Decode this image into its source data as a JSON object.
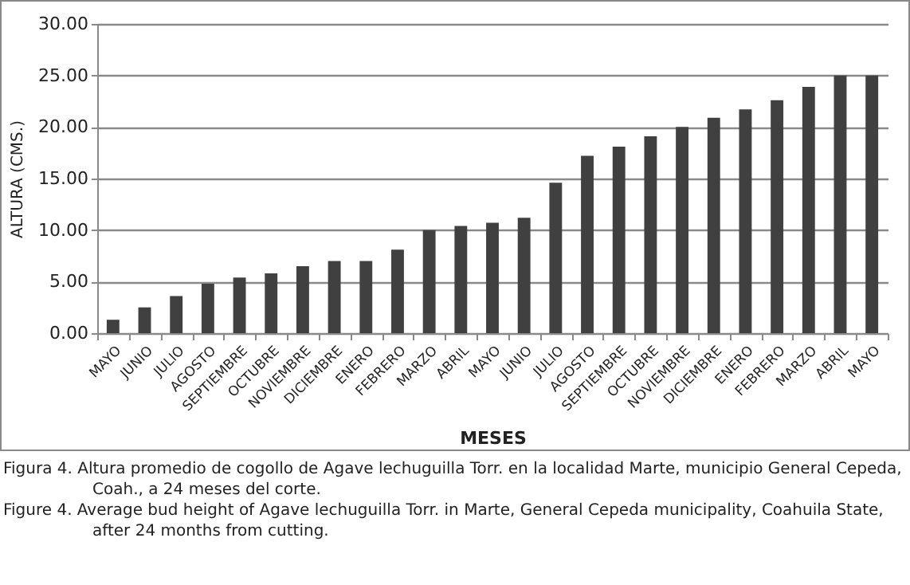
{
  "chart_data": {
    "type": "bar",
    "xlabel": "MESES",
    "ylabel": "ALTURA (CMS.)",
    "categories": [
      "MAYO",
      "JUNIO",
      "JULIO",
      "AGOSTO",
      "SEPTIEMBRE",
      "OCTUBRE",
      "NOVIEMBRE",
      "DICIEMBRE",
      "ENERO",
      "FEBRERO",
      "MARZO",
      "ABRIL",
      "MAYO",
      "JUNIO",
      "JULIO",
      "AGOSTO",
      "SEPTIEMBRE",
      "OCTUBRE",
      "NOVIEMBRE",
      "DICIEMBRE",
      "ENERO",
      "FEBRERO",
      "MARZO",
      "ABRIL",
      "MAYO"
    ],
    "values": [
      1.3,
      2.5,
      3.6,
      4.8,
      5.4,
      5.8,
      6.5,
      7.0,
      7.0,
      8.1,
      10.0,
      10.4,
      10.7,
      11.2,
      14.6,
      17.2,
      18.1,
      19.1,
      20.0,
      20.9,
      21.7,
      22.6,
      23.9,
      25.0,
      25.0
    ],
    "color": "#404040",
    "ylim": [
      0,
      30
    ],
    "yticks": [
      {
        "value": 0,
        "label": "0.00"
      },
      {
        "value": 5,
        "label": "5.00"
      },
      {
        "value": 10,
        "label": "10.00"
      },
      {
        "value": 15,
        "label": "15.00"
      },
      {
        "value": 20,
        "label": "20.00"
      },
      {
        "value": 25,
        "label": "25.00"
      },
      {
        "value": 30,
        "label": "30.00"
      }
    ],
    "grid": "y",
    "annotations": [
      "Figura 4. Altura promedio de cogollo de Agave lechuguilla Torr. en la localidad Marte, municipio General Cepeda, Coah., a 24 meses del corte.",
      "Figure 4. Average bud height of Agave lechuguilla Torr. in Marte, General Cepeda municipality, Coahuila State, after 24 months from cutting."
    ]
  }
}
